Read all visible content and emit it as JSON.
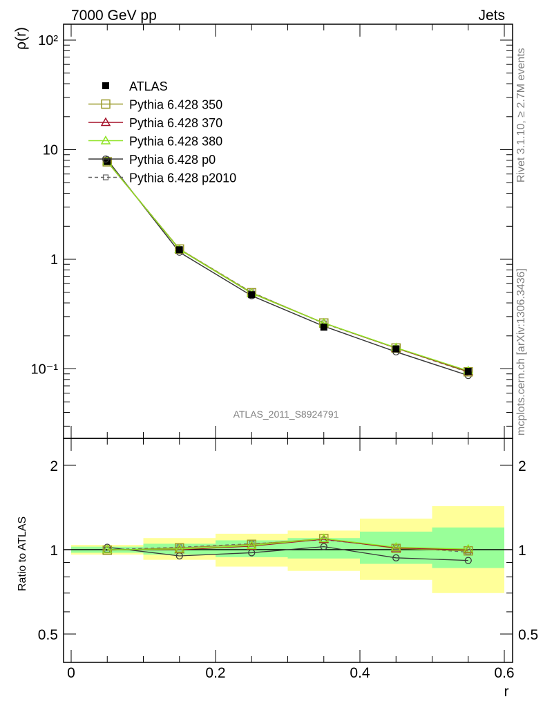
{
  "header": {
    "left": "7000 GeV pp",
    "right": "Jets"
  },
  "side_text": {
    "rivet": "Rivet 3.1.10, ≥ 2.7M events",
    "mcplots": "mcplots.cern.ch [arXiv:1306.3436]"
  },
  "chart_data": [
    {
      "type": "line",
      "ylabel": "ρ(r)",
      "yscale": "log",
      "ylim": [
        0.025,
        130
      ],
      "xlim": [
        -0.01,
        0.6
      ],
      "annotation": "ATLAS_2011_S8924791",
      "x": [
        0.05,
        0.15,
        0.25,
        0.35,
        0.45,
        0.55
      ],
      "series": [
        {
          "name": "ATLAS",
          "values": [
            7.8,
            1.22,
            0.475,
            0.24,
            0.152,
            0.095
          ],
          "color": "#000000",
          "marker": "filled-square"
        },
        {
          "name": "Pythia 6.428 350",
          "values": [
            7.75,
            1.24,
            0.495,
            0.262,
            0.155,
            0.094
          ],
          "color": "#9a9a2a",
          "marker": "open-square"
        },
        {
          "name": "Pythia 6.428 370",
          "values": [
            7.8,
            1.23,
            0.49,
            0.262,
            0.155,
            0.095
          ],
          "color": "#a5122a",
          "marker": "open-triangle"
        },
        {
          "name": "Pythia 6.428 380",
          "values": [
            7.8,
            1.23,
            0.49,
            0.262,
            0.156,
            0.096
          ],
          "color": "#8ee323",
          "marker": "open-triangle"
        },
        {
          "name": "Pythia 6.428 p0",
          "values": [
            8.1,
            1.16,
            0.465,
            0.245,
            0.143,
            0.087
          ],
          "color": "#3a3a3a",
          "marker": "open-circle"
        },
        {
          "name": "Pythia 6.428 p2010",
          "values": [
            7.8,
            1.24,
            0.5,
            0.26,
            0.155,
            0.093
          ],
          "color": "#666666",
          "marker": "small-open-square",
          "dashed": true
        }
      ],
      "yticks": [
        "10⁻¹",
        "1",
        "10",
        "10²"
      ]
    },
    {
      "type": "line",
      "ylabel": "Ratio to ATLAS",
      "xlabel": "r",
      "ylim": [
        0.42,
        2.35
      ],
      "xlim": [
        -0.01,
        0.6
      ],
      "x": [
        0.05,
        0.15,
        0.25,
        0.35,
        0.45,
        0.55
      ],
      "bands": {
        "bins": [
          [
            0.0,
            0.1
          ],
          [
            0.1,
            0.2
          ],
          [
            0.2,
            0.3
          ],
          [
            0.3,
            0.4
          ],
          [
            0.4,
            0.5
          ],
          [
            0.5,
            0.6
          ]
        ],
        "yellow": [
          [
            0.96,
            1.04
          ],
          [
            0.92,
            1.1
          ],
          [
            0.87,
            1.14
          ],
          [
            0.84,
            1.17
          ],
          [
            0.78,
            1.29
          ],
          [
            0.7,
            1.43
          ]
        ],
        "green": [
          [
            0.975,
            1.025
          ],
          [
            0.96,
            1.05
          ],
          [
            0.94,
            1.08
          ],
          [
            0.93,
            1.1
          ],
          [
            0.89,
            1.16
          ],
          [
            0.86,
            1.2
          ]
        ]
      },
      "series": [
        {
          "name": "Pythia 6.428 350",
          "values": [
            0.995,
            1.015,
            1.045,
            1.095,
            1.01,
            0.99
          ]
        },
        {
          "name": "Pythia 6.428 370",
          "values": [
            1.0,
            1.0,
            1.03,
            1.09,
            1.015,
            1.0
          ]
        },
        {
          "name": "Pythia 6.428 380",
          "values": [
            1.0,
            1.005,
            1.035,
            1.095,
            1.02,
            1.005
          ]
        },
        {
          "name": "Pythia 6.428 p0",
          "values": [
            1.02,
            0.95,
            0.975,
            1.025,
            0.935,
            0.915
          ]
        },
        {
          "name": "Pythia 6.428 p2010",
          "values": [
            1.0,
            1.02,
            1.05,
            1.085,
            1.02,
            0.98
          ]
        }
      ],
      "xticks": [
        "0",
        "0.2",
        "0.4",
        "0.6"
      ],
      "yticks": [
        "0.5",
        "1",
        "2"
      ]
    }
  ]
}
